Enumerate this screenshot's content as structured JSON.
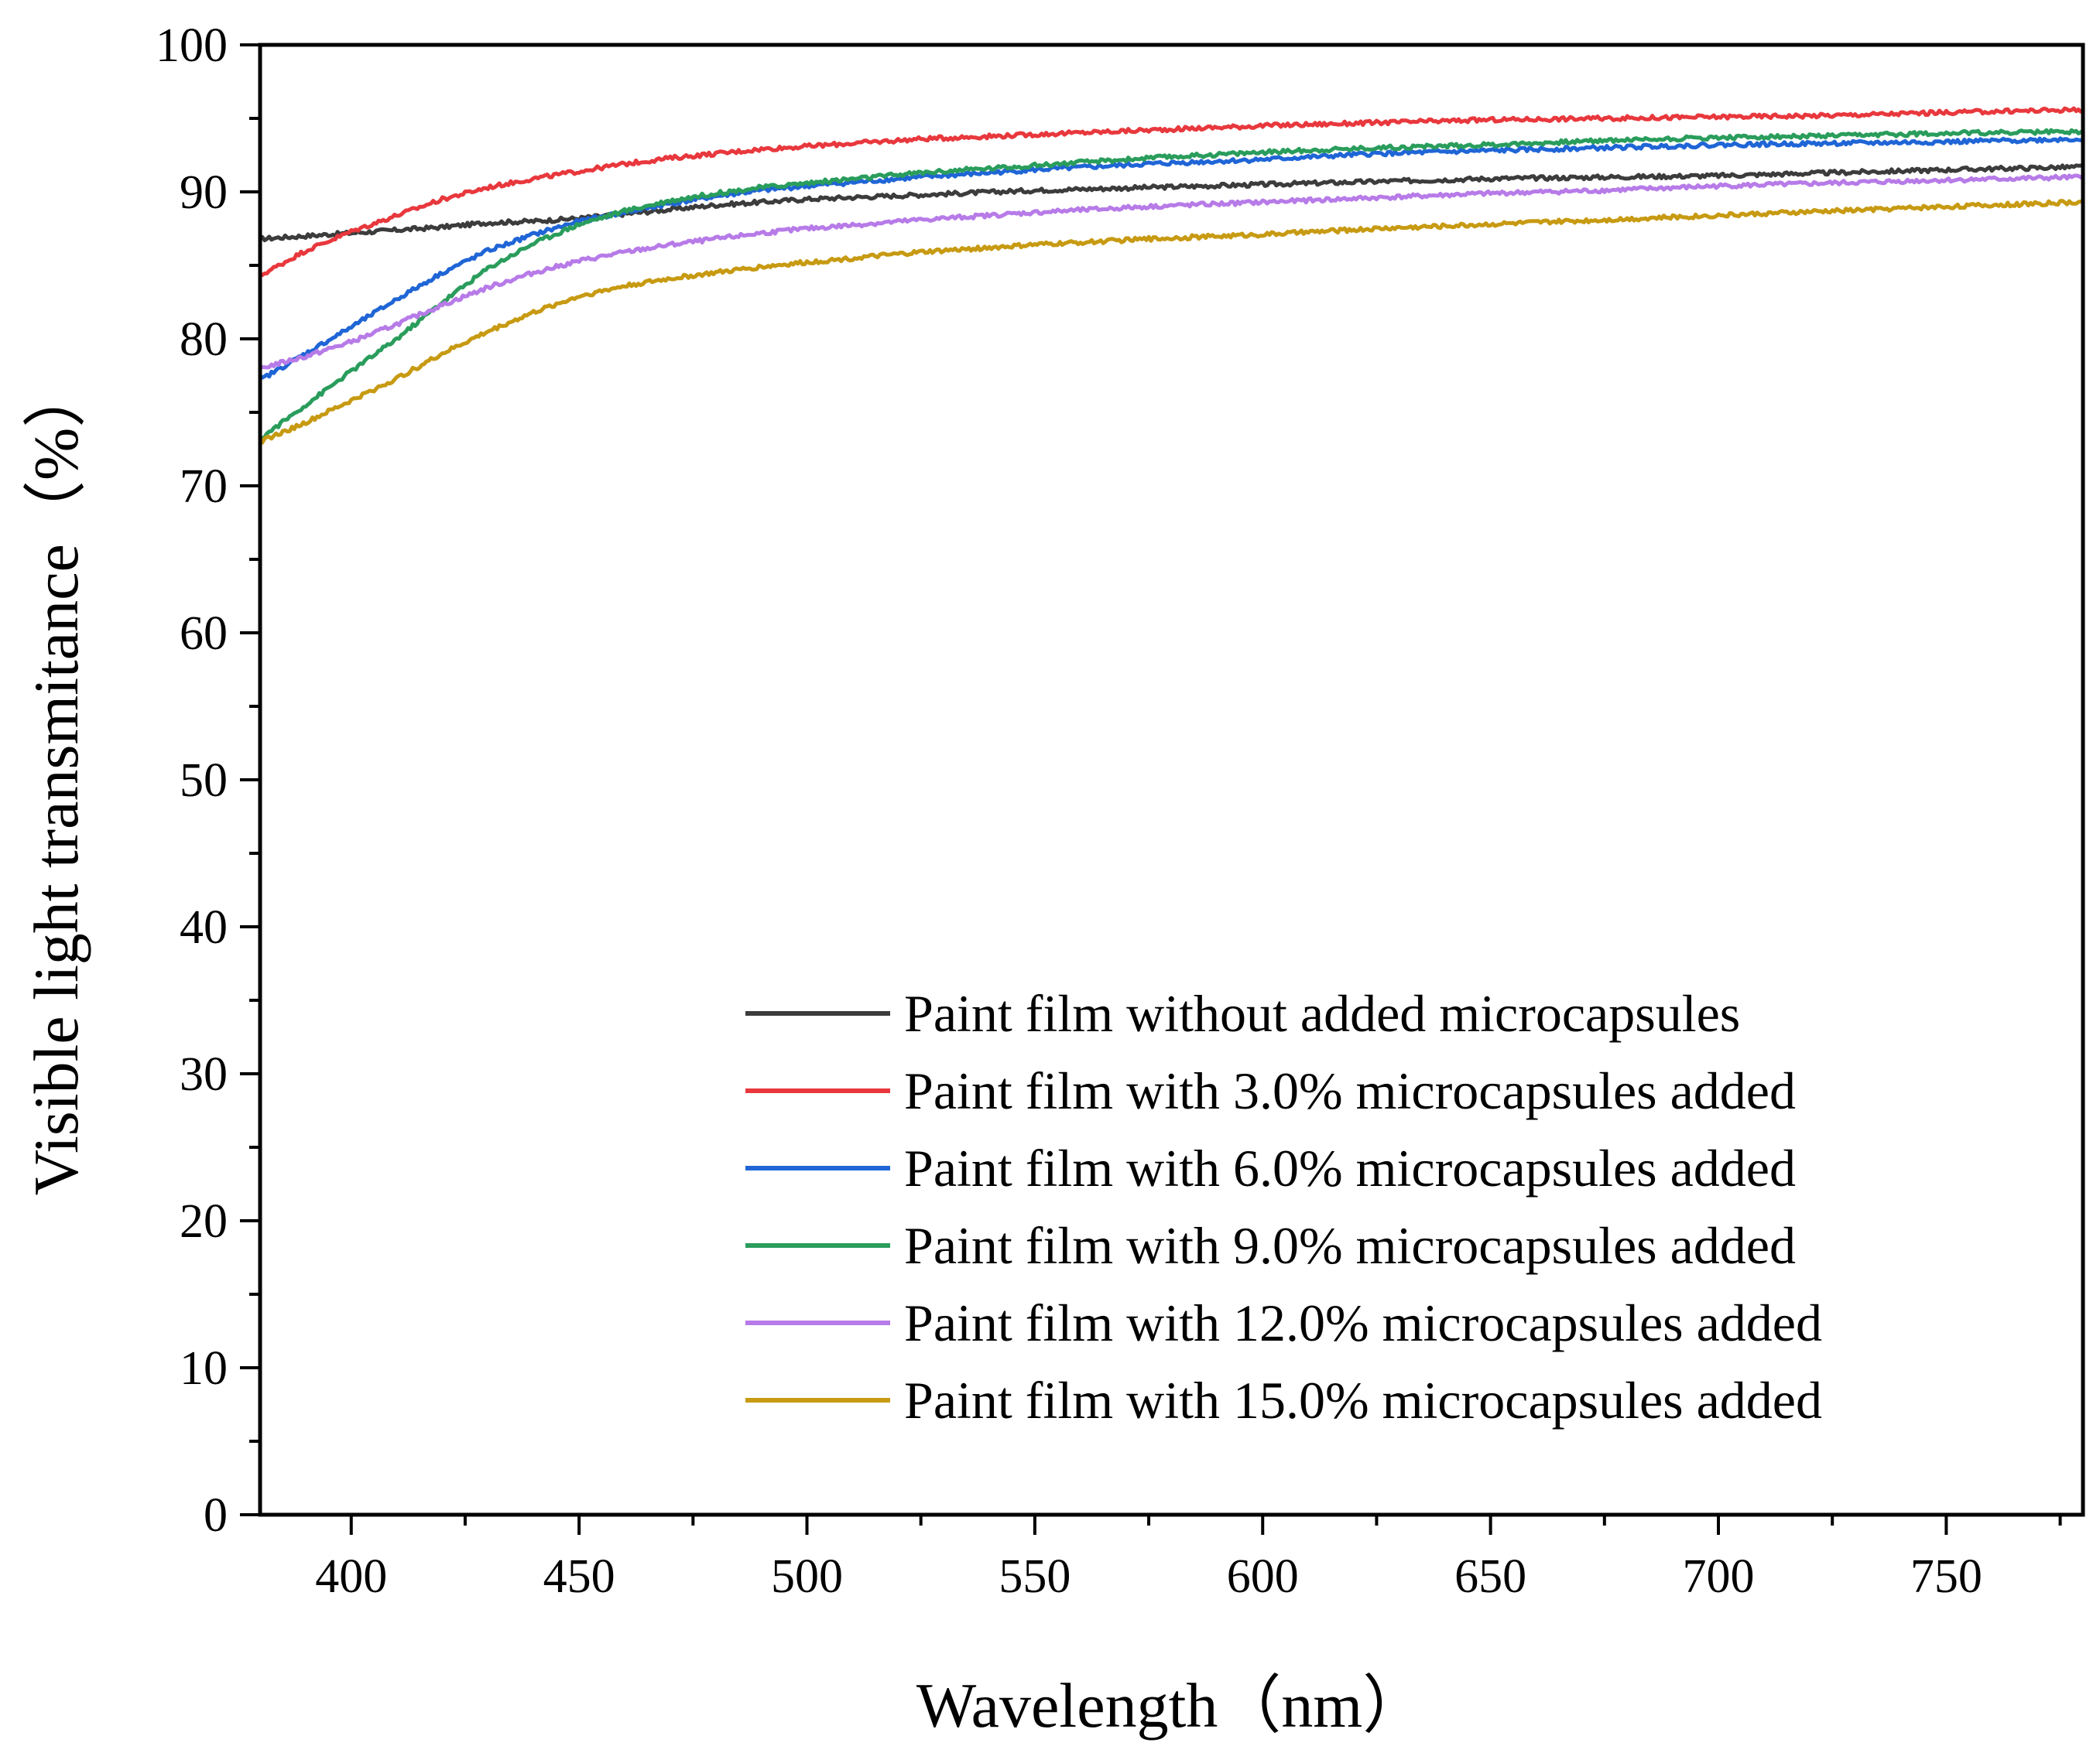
{
  "chart_data": {
    "type": "line",
    "title": "",
    "xlabel": "Wavelength（nm）",
    "ylabel": "Visible light transmitance（%）",
    "xlim": [
      380,
      780
    ],
    "ylim": [
      0,
      100
    ],
    "x_ticks": [
      400,
      450,
      500,
      550,
      600,
      650,
      700,
      750
    ],
    "y_ticks": [
      0,
      10,
      20,
      30,
      40,
      50,
      60,
      70,
      80,
      90,
      100
    ],
    "x_tick_labels": [
      "400",
      "450",
      "500",
      "550",
      "600",
      "650",
      "700",
      "750"
    ],
    "y_tick_labels": [
      "0",
      "10",
      "20",
      "30",
      "40",
      "50",
      "60",
      "70",
      "80",
      "90",
      "100"
    ],
    "grid": false,
    "legend_position": "bottom-right",
    "x": [
      380,
      390,
      400,
      410,
      420,
      430,
      440,
      450,
      460,
      470,
      480,
      490,
      500,
      525,
      550,
      575,
      600,
      625,
      650,
      675,
      700,
      725,
      750,
      780
    ],
    "series": [
      {
        "name": "Paint film without added microcapsules",
        "color": "#3c3c3c",
        "values": [
          86.8,
          87.0,
          87.2,
          87.4,
          87.6,
          87.9,
          88.0,
          88.2,
          88.5,
          88.8,
          89.1,
          89.3,
          89.5,
          89.8,
          90.1,
          90.3,
          90.5,
          90.7,
          90.9,
          91.0,
          91.1,
          91.3,
          91.5,
          91.7
        ]
      },
      {
        "name": "Paint film with 3.0% microcapsules added",
        "color": "#e8383d",
        "values": [
          84.3,
          86.0,
          87.3,
          88.4,
          89.5,
          90.3,
          90.9,
          91.4,
          91.9,
          92.3,
          92.6,
          92.9,
          93.1,
          93.6,
          93.9,
          94.2,
          94.5,
          94.7,
          94.9,
          95.0,
          95.1,
          95.2,
          95.4,
          95.6
        ]
      },
      {
        "name": "Paint film with 6.0% microcapsules added",
        "color": "#1f65d6",
        "values": [
          77.2,
          79.0,
          80.8,
          82.7,
          84.5,
          86.0,
          87.1,
          88.0,
          88.6,
          89.2,
          89.7,
          90.1,
          90.4,
          91.0,
          91.5,
          91.9,
          92.2,
          92.6,
          92.8,
          93.0,
          93.2,
          93.3,
          93.4,
          93.6
        ]
      },
      {
        "name": "Paint film with 9.0% microcapsules added",
        "color": "#2a9d5c",
        "values": [
          73.2,
          75.5,
          77.8,
          80.0,
          82.5,
          84.8,
          86.5,
          87.8,
          88.7,
          89.4,
          89.9,
          90.3,
          90.6,
          91.3,
          91.8,
          92.3,
          92.7,
          93.0,
          93.2,
          93.5,
          93.7,
          93.8,
          94.0,
          94.1
        ]
      },
      {
        "name": "Paint film with 12.0% microcapsules added",
        "color": "#b77be8",
        "values": [
          78.0,
          78.8,
          79.8,
          81.0,
          82.3,
          83.5,
          84.5,
          85.3,
          85.9,
          86.4,
          86.8,
          87.2,
          87.5,
          88.1,
          88.6,
          89.0,
          89.3,
          89.6,
          89.9,
          90.1,
          90.4,
          90.6,
          90.8,
          91.0
        ]
      },
      {
        "name": "Paint film with 15.0% microcapsules added",
        "color": "#c79a12",
        "values": [
          73.0,
          74.3,
          75.8,
          77.3,
          79.0,
          80.5,
          81.8,
          82.9,
          83.6,
          84.1,
          84.5,
          84.9,
          85.2,
          85.9,
          86.4,
          86.8,
          87.1,
          87.5,
          87.8,
          88.1,
          88.4,
          88.7,
          89.0,
          89.3
        ]
      }
    ]
  }
}
